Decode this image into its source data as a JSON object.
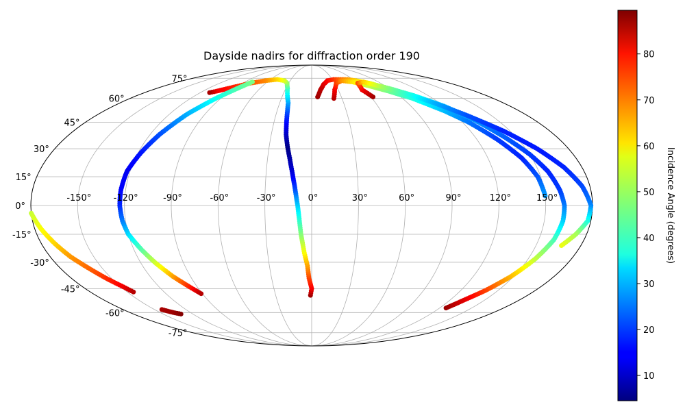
{
  "chart_data": {
    "type": "scatter",
    "projection": "mollweide",
    "title": "Dayside nadirs for diffraction order 190",
    "colorbar": {
      "label": "Incidence Angle (degrees)",
      "colormap": "jet",
      "range": [
        4.5,
        89.5
      ],
      "ticks": [
        10,
        20,
        30,
        40,
        50,
        60,
        70,
        80
      ]
    },
    "grid": true,
    "longitude_ticks": [
      -150,
      -120,
      -90,
      -60,
      -30,
      0,
      30,
      60,
      90,
      120,
      150
    ],
    "longitude_tick_labels": [
      "-150°",
      "-120°",
      "-90°",
      "-60°",
      "-30°",
      "0°",
      "30°",
      "60°",
      "90°",
      "120°",
      "150°"
    ],
    "latitude_ticks": [
      -75,
      -60,
      -45,
      -30,
      -15,
      0,
      15,
      30,
      45,
      60,
      75
    ],
    "latitude_tick_labels": [
      "-75°",
      "-60°",
      "-45°",
      "-30°",
      "-15°",
      "0°",
      "15°",
      "30°",
      "45°",
      "60°",
      "75°"
    ],
    "series": [
      {
        "points": [
          [
            -1,
            -49,
            87
          ],
          [
            0,
            -45,
            80
          ],
          [
            -2,
            -39,
            74
          ],
          [
            -3,
            -32,
            66
          ],
          [
            -5,
            -25,
            58
          ],
          [
            -7,
            -15,
            48
          ],
          [
            -8,
            -7,
            40
          ],
          [
            -9,
            0,
            33
          ],
          [
            -10,
            5,
            27
          ],
          [
            -11,
            10,
            20
          ],
          [
            -13,
            18,
            12
          ],
          [
            -15,
            25,
            8
          ],
          [
            -17,
            31,
            5
          ],
          [
            -19,
            38,
            10
          ],
          [
            -20,
            45,
            15
          ],
          [
            -21,
            52,
            22
          ],
          [
            -22,
            57,
            28
          ],
          [
            -25,
            62,
            35
          ],
          [
            -28,
            67,
            41
          ],
          [
            -32,
            71,
            48
          ],
          [
            -38,
            73,
            54
          ],
          [
            -50,
            74,
            60
          ],
          [
            -65,
            73,
            67
          ],
          [
            -80,
            71,
            72
          ],
          [
            -93,
            68,
            76
          ],
          [
            -105,
            65,
            80
          ],
          [
            -110,
            64,
            86
          ]
        ]
      },
      {
        "points": [
          [
            -80,
            72,
            47
          ],
          [
            -95,
            60,
            38
          ],
          [
            -105,
            50,
            30
          ],
          [
            -113,
            38,
            22
          ],
          [
            -118,
            28,
            17
          ],
          [
            -122,
            18,
            14
          ],
          [
            -123,
            8,
            15
          ],
          [
            -123,
            0,
            18
          ],
          [
            -122,
            -8,
            25
          ],
          [
            -120,
            -15,
            33
          ],
          [
            -115,
            -23,
            43
          ],
          [
            -110,
            -30,
            53
          ],
          [
            -103,
            -38,
            65
          ],
          [
            -96,
            -44,
            76
          ],
          [
            -91,
            -48,
            85
          ]
        ]
      },
      {
        "points": [
          [
            -180,
            -4,
            53
          ],
          [
            -176,
            -12,
            57
          ],
          [
            -171,
            -20,
            61
          ],
          [
            -166,
            -27,
            66
          ],
          [
            -160,
            -33,
            70
          ],
          [
            -154,
            -39,
            75
          ],
          [
            -148,
            -44,
            80
          ],
          [
            -145,
            -47,
            85
          ]
        ]
      },
      {
        "points": [
          [
            -143,
            -58,
            86
          ],
          [
            -137,
            -60,
            87
          ],
          [
            -132,
            -61,
            89
          ]
        ]
      },
      {
        "points": [
          [
            6,
            61,
            87
          ],
          [
            10,
            66,
            85
          ],
          [
            15,
            70,
            82
          ],
          [
            22,
            73,
            79
          ],
          [
            32,
            74,
            75
          ],
          [
            42,
            74,
            70
          ],
          [
            52,
            74,
            66
          ],
          [
            62,
            73,
            61
          ],
          [
            75,
            71,
            54
          ],
          [
            90,
            67,
            46
          ],
          [
            105,
            62,
            38
          ],
          [
            120,
            55,
            32
          ],
          [
            132,
            46,
            27
          ],
          [
            142,
            36,
            23
          ],
          [
            150,
            27,
            20
          ],
          [
            156,
            18,
            18
          ],
          [
            160,
            8,
            20
          ],
          [
            162,
            0,
            25
          ],
          [
            162,
            -8,
            32
          ],
          [
            160,
            -18,
            42
          ],
          [
            155,
            -28,
            52
          ],
          [
            148,
            -38,
            63
          ],
          [
            140,
            -46,
            73
          ],
          [
            132,
            -52,
            81
          ],
          [
            126,
            -57,
            87
          ]
        ]
      },
      {
        "points": [
          [
            22,
            60,
            85
          ],
          [
            26,
            66,
            80
          ],
          [
            32,
            71,
            74
          ],
          [
            42,
            73,
            67
          ],
          [
            55,
            72,
            60
          ],
          [
            70,
            69,
            53
          ],
          [
            85,
            65,
            46
          ],
          [
            100,
            60,
            39
          ],
          [
            115,
            52,
            31
          ],
          [
            125,
            45,
            25
          ],
          [
            135,
            35,
            20
          ],
          [
            143,
            25,
            18
          ],
          [
            148,
            15,
            22
          ],
          [
            150,
            5,
            28
          ]
        ]
      },
      {
        "points": [
          [
            62,
            61,
            87
          ],
          [
            57,
            66,
            80
          ],
          [
            60,
            71,
            72
          ],
          [
            70,
            72,
            62
          ],
          [
            85,
            68,
            50
          ],
          [
            100,
            63,
            40
          ],
          [
            115,
            57,
            30
          ],
          [
            130,
            49,
            22
          ],
          [
            145,
            40,
            18
          ],
          [
            158,
            30,
            17
          ],
          [
            168,
            20,
            18
          ],
          [
            175,
            10,
            21
          ],
          [
            179,
            0,
            26
          ],
          [
            178,
            -8,
            38
          ],
          [
            173,
            -15,
            50
          ],
          [
            167,
            -21,
            56
          ]
        ]
      }
    ]
  }
}
